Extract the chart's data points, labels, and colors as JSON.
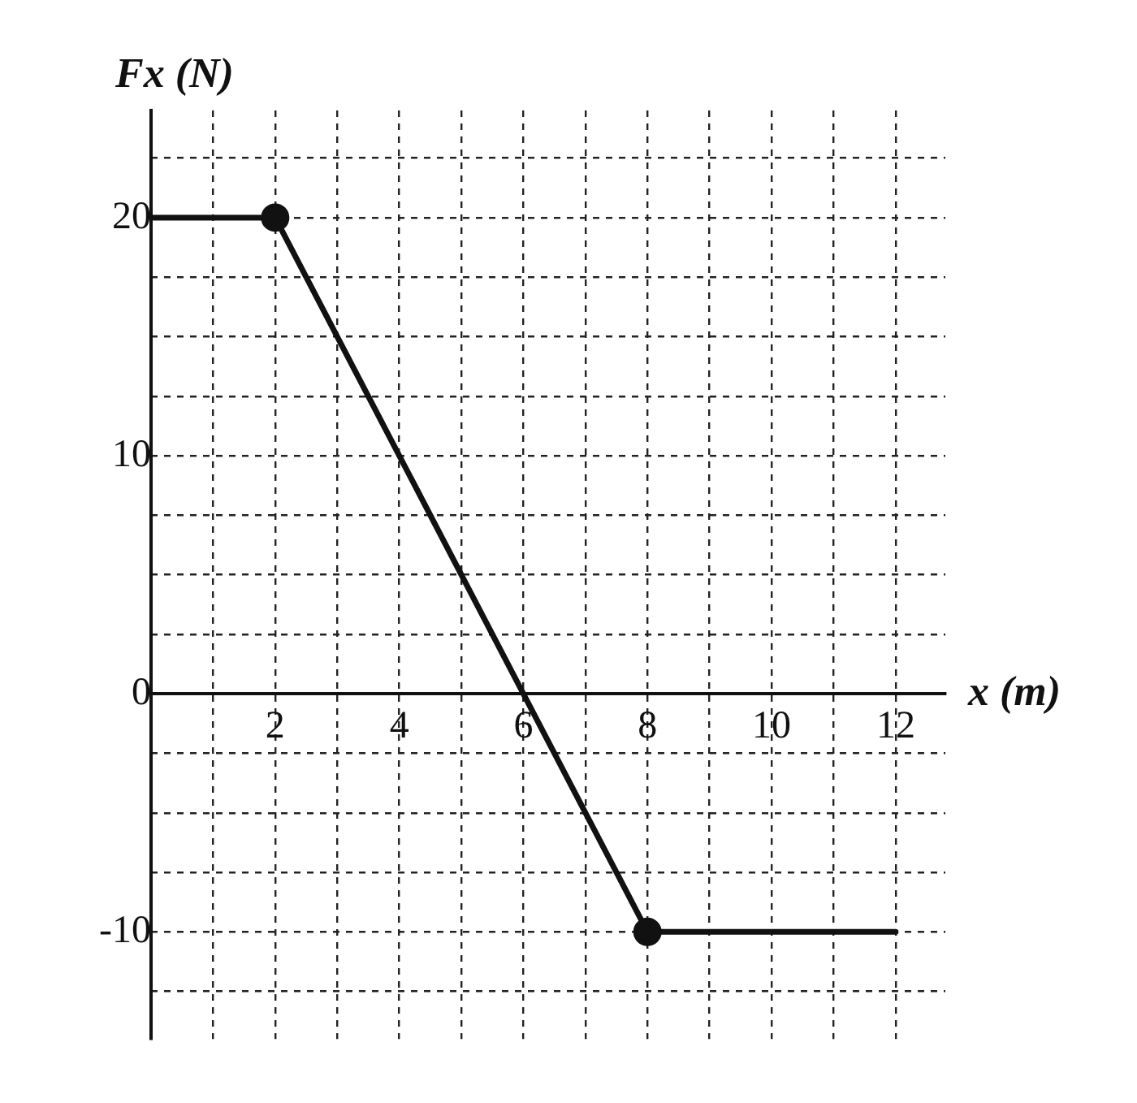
{
  "chart_data": {
    "type": "line",
    "xlabel": "x (m)",
    "ylabel": "Fx (N)",
    "x": [
      0,
      2,
      8,
      12
    ],
    "series": [
      {
        "color": "#111111",
        "values": [
          20,
          20,
          -10,
          -10
        ]
      }
    ],
    "xlim": [
      0,
      12.8
    ],
    "ylim": [
      -14.5,
      24.5
    ],
    "xticks": [
      {
        "value": 1,
        "label": null
      },
      2,
      {
        "value": 3,
        "label": null
      },
      4,
      {
        "value": 5,
        "label": null
      },
      6,
      {
        "value": 7,
        "label": null
      },
      8,
      {
        "value": 9,
        "label": null
      },
      10,
      {
        "value": 11,
        "label": null
      },
      12
    ],
    "yticks": [
      {
        "value": -12.5,
        "label": null
      },
      -10,
      {
        "value": -7.5,
        "label": null
      },
      {
        "value": -5,
        "label": null
      },
      {
        "value": -2.5,
        "label": null
      },
      0,
      {
        "value": 2.5,
        "label": null
      },
      {
        "value": 5,
        "label": null
      },
      {
        "value": 7.5,
        "label": null
      },
      10,
      {
        "value": 12.5,
        "label": null
      },
      {
        "value": 15,
        "label": null
      },
      {
        "value": 17.5,
        "label": null
      },
      20,
      {
        "value": 22.5,
        "label": null
      }
    ],
    "grid": true,
    "marker": "circle",
    "line_style": "solid",
    "legend": false
  }
}
